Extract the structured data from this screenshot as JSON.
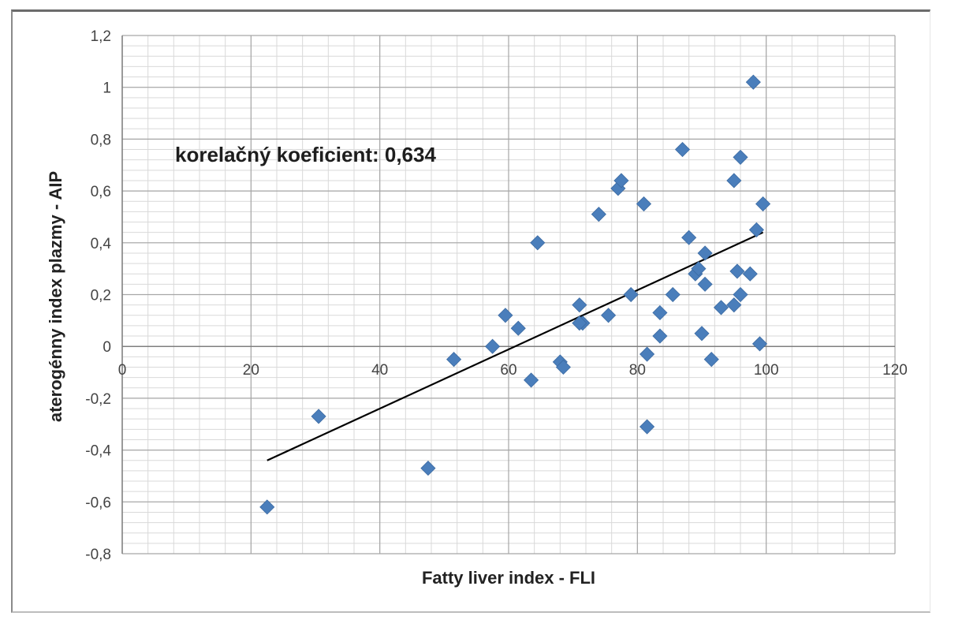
{
  "chart_data": {
    "type": "scatter",
    "title": "",
    "xlabel": "Fatty liver index - FLI",
    "ylabel": "aterogénny index plazmy - AIP",
    "annotation": "korelačný koeficient: 0,634",
    "xlim": [
      0,
      120
    ],
    "ylim": [
      -0.8,
      1.2
    ],
    "x_ticks": [
      "0",
      "20",
      "40",
      "60",
      "80",
      "100",
      "120"
    ],
    "y_ticks": [
      "1,2",
      "1",
      "0,8",
      "0,6",
      "0,4",
      "0,2",
      "0",
      "-0,2",
      "-0,4",
      "-0,6",
      "-0,8"
    ],
    "grid": true,
    "legend": "none",
    "marker_color": "#4a7ebb",
    "trendline_color": "#000000",
    "trendline": {
      "x": [
        22.5,
        99.5
      ],
      "y": [
        -0.44,
        0.44
      ]
    },
    "points": [
      {
        "x": 22.5,
        "y": -0.62
      },
      {
        "x": 30.5,
        "y": -0.27
      },
      {
        "x": 47.5,
        "y": -0.47
      },
      {
        "x": 51.5,
        "y": -0.05
      },
      {
        "x": 57.5,
        "y": 0.0
      },
      {
        "x": 59.5,
        "y": 0.12
      },
      {
        "x": 61.5,
        "y": 0.07
      },
      {
        "x": 63.5,
        "y": -0.13
      },
      {
        "x": 64.5,
        "y": 0.4
      },
      {
        "x": 68.0,
        "y": -0.06
      },
      {
        "x": 68.5,
        "y": -0.08
      },
      {
        "x": 71.0,
        "y": 0.16
      },
      {
        "x": 71.5,
        "y": 0.09
      },
      {
        "x": 71.0,
        "y": 0.09
      },
      {
        "x": 74.0,
        "y": 0.51
      },
      {
        "x": 75.5,
        "y": 0.12
      },
      {
        "x": 77.0,
        "y": 0.61
      },
      {
        "x": 77.5,
        "y": 0.64
      },
      {
        "x": 79.0,
        "y": 0.2
      },
      {
        "x": 81.0,
        "y": 0.55
      },
      {
        "x": 81.5,
        "y": -0.03
      },
      {
        "x": 81.5,
        "y": -0.31
      },
      {
        "x": 83.5,
        "y": 0.13
      },
      {
        "x": 83.5,
        "y": 0.04
      },
      {
        "x": 85.5,
        "y": 0.2
      },
      {
        "x": 87.0,
        "y": 0.76
      },
      {
        "x": 88.0,
        "y": 0.42
      },
      {
        "x": 89.0,
        "y": 0.28
      },
      {
        "x": 89.5,
        "y": 0.3
      },
      {
        "x": 90.0,
        "y": 0.05
      },
      {
        "x": 90.5,
        "y": 0.36
      },
      {
        "x": 90.5,
        "y": 0.24
      },
      {
        "x": 91.5,
        "y": -0.05
      },
      {
        "x": 93.0,
        "y": 0.15
      },
      {
        "x": 95.0,
        "y": 0.64
      },
      {
        "x": 95.0,
        "y": 0.16
      },
      {
        "x": 95.5,
        "y": 0.29
      },
      {
        "x": 96.0,
        "y": 0.73
      },
      {
        "x": 96.0,
        "y": 0.2
      },
      {
        "x": 97.5,
        "y": 0.28
      },
      {
        "x": 98.0,
        "y": 1.02
      },
      {
        "x": 98.5,
        "y": 0.45
      },
      {
        "x": 99.0,
        "y": 0.01
      },
      {
        "x": 99.5,
        "y": 0.55
      }
    ]
  }
}
